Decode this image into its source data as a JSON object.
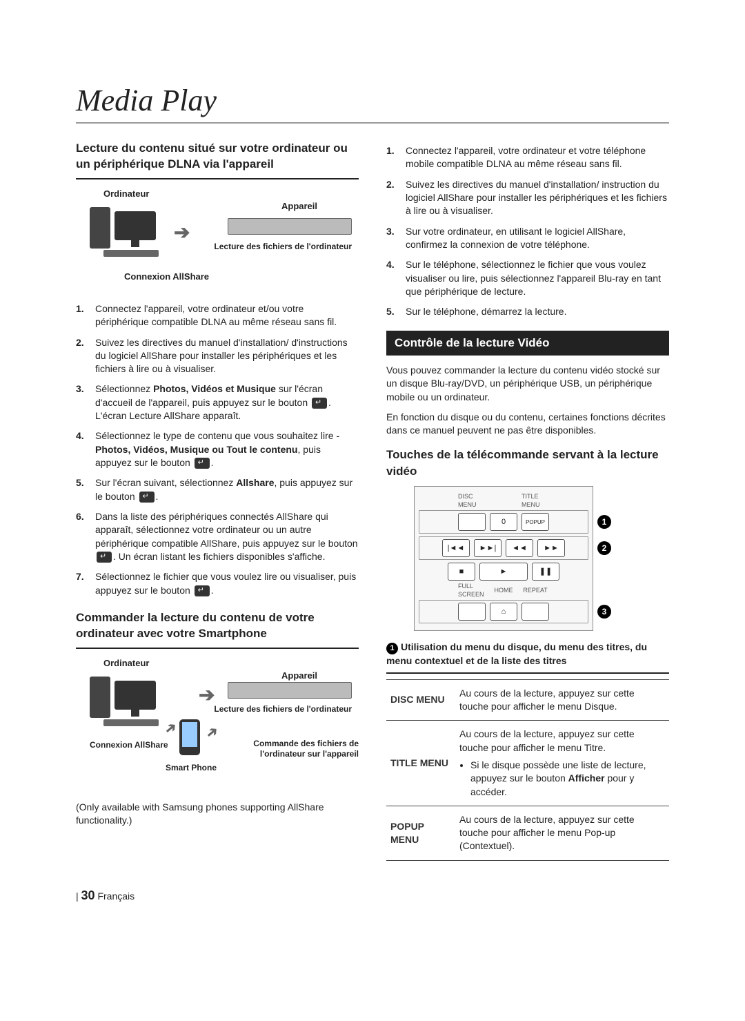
{
  "page": {
    "title": "Media Play",
    "number": "30",
    "lang": "Français"
  },
  "left": {
    "heading_a": "Lecture du contenu situé sur votre ordinateur ou un périphérique DLNA via l'appareil",
    "diagram_a": {
      "pc": "Ordinateur",
      "device": "Appareil",
      "caption_right": "Lecture des fichiers de l'ordinateur",
      "caption_bottom": "Connexion AllShare"
    },
    "steps_a": [
      "Connectez l'appareil, votre ordinateur et/ou votre périphérique compatible DLNA au même réseau sans fil.",
      "Suivez les directives du manuel d'installation/ d'instructions du logiciel AllShare pour installer les périphériques et les fichiers à lire ou à visualiser.",
      "Sélectionnez <b>Photos, Vidéos et Musique</b> sur l'écran d'accueil de l'appareil, puis appuyez sur le bouton <ok>. L'écran Lecture AllShare apparaît.",
      "Sélectionnez le type de contenu que vous souhaitez lire - <b>Photos, Vidéos, Musique ou Tout le contenu</b>, puis appuyez sur le bouton <ok>.",
      "Sur l'écran suivant, sélectionnez <b>Allshare</b>, puis appuyez sur le bouton <ok>.",
      "Dans la liste des périphériques connectés AllShare qui apparaît, sélectionnez votre ordinateur ou un autre périphérique compatible AllShare, puis appuyez sur le bouton <ok>. Un écran listant les fichiers disponibles s'affiche.",
      "Sélectionnez le fichier que vous voulez lire ou visualiser, puis appuyez sur le bouton <ok>."
    ],
    "heading_b": "Commander la lecture du contenu de votre ordinateur avec votre Smartphone",
    "diagram_b": {
      "pc": "Ordinateur",
      "device": "Appareil",
      "caption_right": "Lecture des fichiers de l'ordinateur",
      "caption_bl": "Connexion AllShare",
      "caption_phone": "Smart Phone",
      "caption_br": "Commande des fichiers de l'ordinateur sur l'appareil"
    },
    "note_b": "(Only available with Samsung phones supporting AllShare functionality.)"
  },
  "right": {
    "steps_top": [
      "Connectez l'appareil, votre ordinateur et votre téléphone mobile compatible DLNA au même réseau sans fil.",
      "Suivez les directives du manuel d'installation/ instruction du logiciel AllShare pour installer les périphériques et les fichiers à lire ou à visualiser.",
      "Sur votre ordinateur, en utilisant le logiciel AllShare, confirmez la connexion de votre téléphone.",
      "Sur le téléphone, sélectionnez le fichier que vous voulez visualiser ou lire, puis sélectionnez l'appareil Blu-ray en tant que périphérique de lecture.",
      "Sur le téléphone, démarrez la lecture."
    ],
    "banner": "Contrôle de la lecture Vidéo",
    "para1": "Vous pouvez commander la lecture du contenu vidéo stocké sur un disque Blu-ray/DVD, un périphérique USB, un périphérique mobile ou un ordinateur.",
    "para2": "En fonction du disque ou du contenu, certaines fonctions décrites dans ce manuel peuvent ne pas être disponibles.",
    "subhead": "Touches de la télécommande servant à la lecture vidéo",
    "remote": {
      "row1_labels": [
        "DISC MENU",
        "TITLE MENU"
      ],
      "row1_buttons": [
        "",
        "0",
        "POPUP"
      ],
      "row2_buttons": [
        "|◄◄",
        "►►|",
        "◄◄",
        "►►"
      ],
      "row3_buttons": [
        "■",
        "►",
        "❚❚"
      ],
      "row4_labels": [
        "FULL SCREEN",
        "HOME",
        "REPEAT"
      ],
      "row4_buttons": [
        "",
        "⌂",
        ""
      ],
      "callouts": [
        "1",
        "2",
        "3"
      ]
    },
    "table_title": "Utilisation du menu du disque, du menu des titres, du menu contextuel et de la liste des titres",
    "table_num": "1",
    "table": [
      {
        "k": "DISC MENU",
        "v": "Au cours de la lecture, appuyez sur cette touche pour afficher le menu Disque."
      },
      {
        "k": "TITLE MENU",
        "v": "Au cours de la lecture, appuyez sur cette touche pour afficher le menu Titre.",
        "bullet": "Si le disque possède une liste de lecture, appuyez sur le bouton <b>Afficher</b> pour y accéder."
      },
      {
        "k": "POPUP MENU",
        "v": "Au cours de la lecture, appuyez sur cette touche pour afficher le menu Pop-up (Contextuel)."
      }
    ]
  },
  "colors": {
    "text": "#222222",
    "rule": "#999999",
    "banner_bg": "#222222",
    "banner_fg": "#ffffff"
  }
}
